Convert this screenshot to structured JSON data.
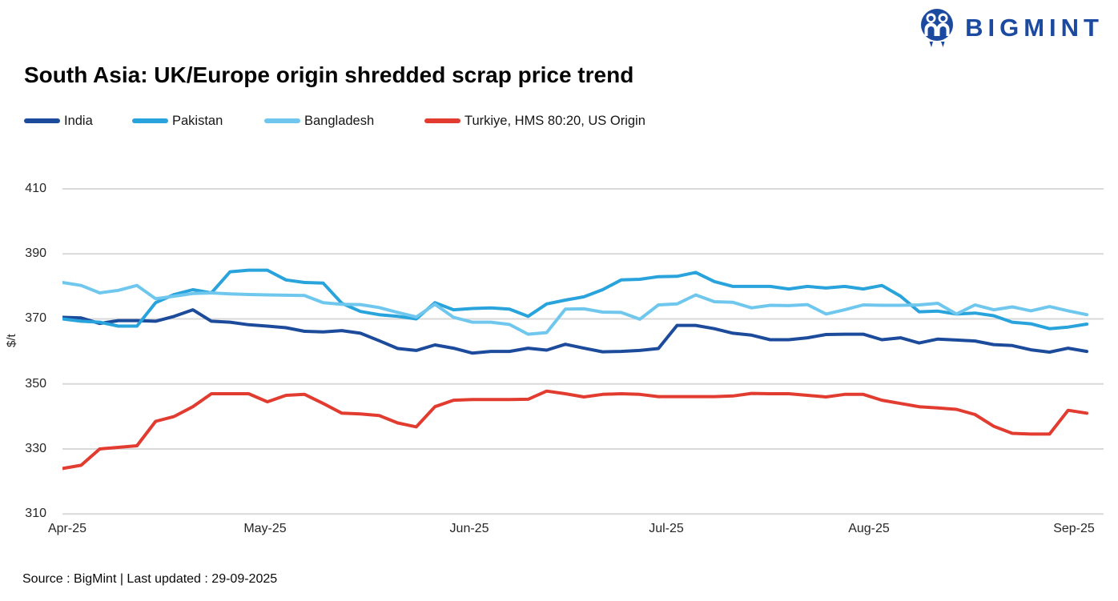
{
  "header": {
    "logo_text": "BIGMINT"
  },
  "title": "South Asia: UK/Europe origin shredded scrap price trend",
  "footer": {
    "source_text": "Source : BigMint | Last updated : 29-09-2025"
  },
  "colors": {
    "logo_navy": "#1b4aa0",
    "grid": "#d9d9d9",
    "axis_text": "#262626",
    "india": "#1c4b9c",
    "pakistan": "#29a3dc",
    "bangladesh": "#70c7ee",
    "turkiye": "#e23b30"
  },
  "chart_data": {
    "type": "line",
    "title": "South Asia: UK/Europe origin shredded scrap price trend",
    "xlabel": "",
    "ylabel": "$/t",
    "ylim": [
      310,
      410
    ],
    "yticks": [
      410,
      390,
      370,
      350,
      330,
      310
    ],
    "xticks": [
      "Apr-25",
      "May-25",
      "Jun-25",
      "Jul-25",
      "Aug-25",
      "Sep-25"
    ],
    "grid": true,
    "legend_position": "top-left",
    "x": [
      "01-Apr",
      "04-Apr",
      "08-Apr",
      "11-Apr",
      "14-Apr",
      "17-Apr",
      "21-Apr",
      "24-Apr",
      "27-Apr",
      "01-May",
      "04-May",
      "07-May",
      "10-May",
      "14-May",
      "17-May",
      "20-May",
      "24-May",
      "27-May",
      "30-May",
      "02-Jun",
      "06-Jun",
      "09-Jun",
      "12-Jun",
      "16-Jun",
      "19-Jun",
      "22-Jun",
      "26-Jun",
      "29-Jun",
      "02-Jul",
      "05-Jul",
      "09-Jul",
      "12-Jul",
      "15-Jul",
      "19-Jul",
      "22-Jul",
      "25-Jul",
      "29-Jul",
      "01-Aug",
      "04-Aug",
      "07-Aug",
      "11-Aug",
      "14-Aug",
      "17-Aug",
      "21-Aug",
      "24-Aug",
      "27-Aug",
      "31-Aug",
      "03-Sep",
      "06-Sep",
      "10-Sep",
      "13-Sep",
      "16-Sep",
      "20-Sep",
      "23-Sep",
      "26-Sep",
      "29-Sep"
    ],
    "series": [
      {
        "name": "India",
        "color": "#1c4b9c",
        "values": [
          370.5,
          370.3,
          368.6,
          369.5,
          369.5,
          369.3,
          370.8,
          372.8,
          369.3,
          369.0,
          368.2,
          367.8,
          367.3,
          366.2,
          366.0,
          366.4,
          365.6,
          363.3,
          360.9,
          360.3,
          362.0,
          361.0,
          359.5,
          360.0,
          360.0,
          361.0,
          360.4,
          362.2,
          361.0,
          359.9,
          360.0,
          360.3,
          360.9,
          368.0,
          368.0,
          367.0,
          365.6,
          365.0,
          363.6,
          363.6,
          364.2,
          365.2,
          365.3,
          365.3,
          363.6,
          364.2,
          362.6,
          363.8,
          363.5,
          363.2,
          362.1,
          361.8,
          360.5,
          359.8,
          361.0,
          360.0
        ]
      },
      {
        "name": "Pakistan",
        "color": "#29a3dc",
        "values": [
          370.0,
          369.3,
          369.0,
          367.8,
          367.8,
          375.0,
          377.5,
          379.0,
          378.0,
          384.5,
          385.0,
          385.0,
          382.0,
          381.2,
          381.0,
          374.8,
          372.3,
          371.3,
          370.8,
          370.0,
          375.0,
          372.8,
          373.2,
          373.4,
          373.0,
          370.8,
          374.6,
          375.8,
          376.8,
          379.0,
          382.0,
          382.2,
          383.0,
          383.1,
          384.3,
          381.5,
          380.0,
          380.0,
          380.0,
          379.2,
          380.0,
          379.5,
          380.0,
          379.2,
          380.3,
          377.0,
          372.2,
          372.4,
          371.5,
          371.8,
          371.0,
          369.0,
          368.5,
          367.0,
          367.5,
          368.4
        ]
      },
      {
        "name": "Bangladesh",
        "color": "#70c7ee",
        "values": [
          381.2,
          380.3,
          378.0,
          378.8,
          380.3,
          376.2,
          377.0,
          377.8,
          378.0,
          377.7,
          377.5,
          377.4,
          377.3,
          377.2,
          375.0,
          374.5,
          374.4,
          373.5,
          372.0,
          370.6,
          374.5,
          370.5,
          369.0,
          369.0,
          368.3,
          365.3,
          365.8,
          373.0,
          373.1,
          372.1,
          372.0,
          369.9,
          374.3,
          374.6,
          377.4,
          375.3,
          375.1,
          373.4,
          374.2,
          374.1,
          374.4,
          371.5,
          372.8,
          374.3,
          374.2,
          374.2,
          374.3,
          374.8,
          371.5,
          374.3,
          372.8,
          373.7,
          372.5,
          373.8,
          372.5,
          371.3
        ]
      },
      {
        "name": "Turkiye, HMS 80:20, US Origin",
        "color": "#e23b30",
        "values": [
          324.0,
          325.0,
          330.0,
          330.5,
          331.0,
          338.5,
          340.0,
          343.0,
          347.0,
          347.0,
          347.0,
          344.5,
          346.5,
          346.8,
          344.0,
          341.0,
          340.8,
          340.3,
          338.0,
          336.8,
          343.0,
          345.0,
          345.2,
          345.2,
          345.2,
          345.3,
          347.8,
          347.0,
          346.0,
          346.8,
          347.0,
          346.8,
          346.1,
          346.1,
          346.1,
          346.1,
          346.3,
          347.1,
          347.0,
          347.0,
          346.5,
          346.0,
          346.8,
          346.8,
          345.0,
          344.0,
          343.0,
          342.6,
          342.2,
          340.6,
          337.0,
          334.8,
          334.6,
          334.6,
          341.9,
          341.0
        ]
      }
    ]
  }
}
